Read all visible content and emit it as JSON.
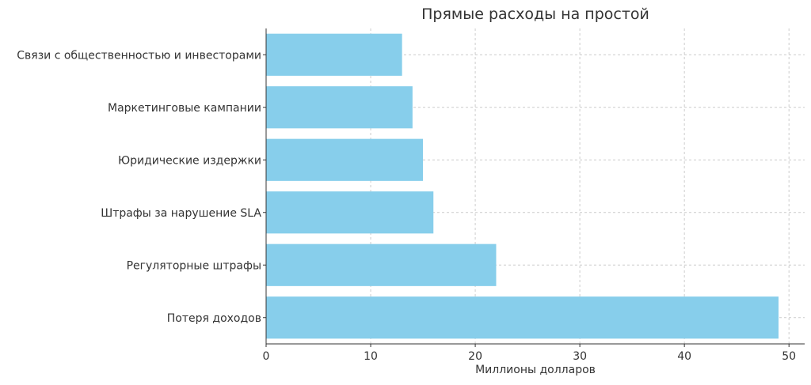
{
  "chart_data": {
    "type": "bar",
    "orientation": "horizontal",
    "title": "Прямые расходы на простой",
    "xlabel": "Миллионы долларов",
    "ylabel": "",
    "categories": [
      "Потеря доходов",
      "Регуляторные штрафы",
      "Штрафы за нарушение SLA",
      "Юридические издержки",
      "Маркетинговые кампании",
      "Связи с общественностью и инвесторами"
    ],
    "values": [
      49,
      22,
      16,
      15,
      14,
      13
    ],
    "xlim": [
      0,
      51.5
    ],
    "xticks": [
      0,
      10,
      20,
      30,
      40,
      50
    ],
    "grid": true,
    "bar_color": "#87CEEB",
    "grid_color": "#cccccc",
    "axis_color": "#333333"
  }
}
